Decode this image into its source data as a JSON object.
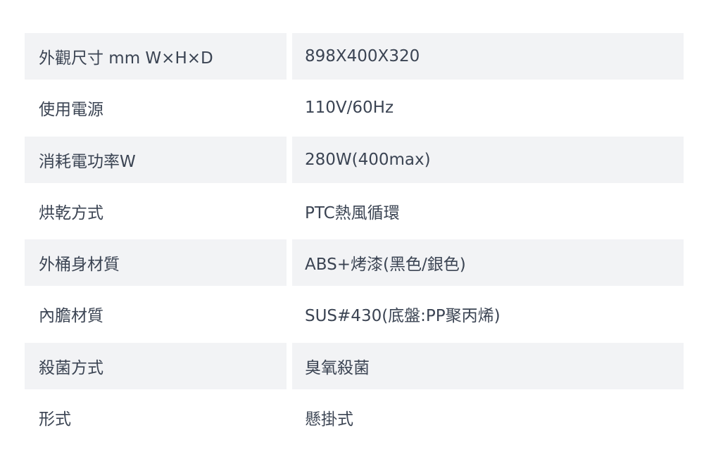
{
  "colors": {
    "shaded_row": "#f2f3f5",
    "text": "#3b4453"
  },
  "specs": [
    {
      "label": "外觀尺寸 mm W×H×D",
      "value": "898X400X320"
    },
    {
      "label": "使用電源",
      "value": "110V/60Hz"
    },
    {
      "label": "消耗電功率W",
      "value": "280W(400max)"
    },
    {
      "label": "烘乾方式",
      "value": "PTC熱風循環"
    },
    {
      "label": "外桶身材質",
      "value": "ABS+烤漆(黑色/銀色)"
    },
    {
      "label": "內膽材質",
      "value": "SUS#430(底盤:PP聚丙烯)"
    },
    {
      "label": "殺菌方式",
      "value": "臭氧殺菌"
    },
    {
      "label": "形式",
      "value": "懸掛式"
    }
  ]
}
